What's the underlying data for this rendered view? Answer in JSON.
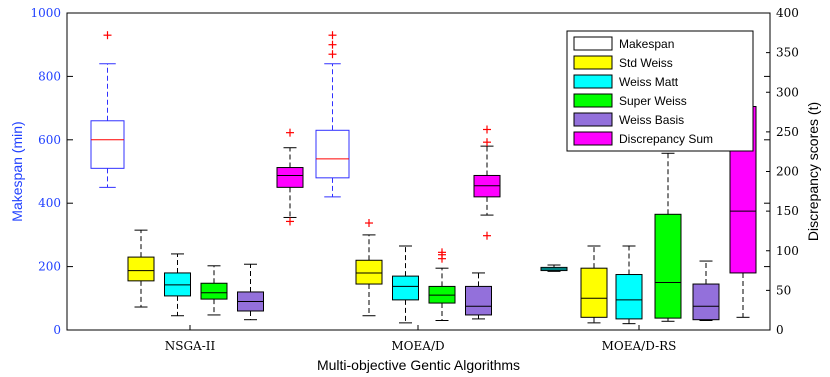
{
  "chart_data": {
    "type": "box",
    "xlabel": "Multi-objective Gentic Algorithms",
    "ylabel_left": "Makespan (min)",
    "ylabel_right": "Discrepancy scores (t)",
    "ylim_left": [
      0,
      1000
    ],
    "ylim_right": [
      0,
      400
    ],
    "yticks_left": [
      "0",
      "200",
      "400",
      "600",
      "800",
      "1000"
    ],
    "yticks_right": [
      "0",
      "50",
      "100",
      "150",
      "200",
      "250",
      "300",
      "350",
      "400"
    ],
    "categories": [
      "NSGA-II",
      "MOEA/D",
      "MOEA/D-RS"
    ],
    "legend_position": "top-right",
    "colors": {
      "left_axis": "#1f3fff",
      "outlier": "#ff0000",
      "median_makespan": "#ff0000"
    },
    "series": [
      {
        "name": "Makespan",
        "axis": "left",
        "color": "#ffffff",
        "edge": "#3030ff"
      },
      {
        "name": "Std Weiss",
        "axis": "right",
        "color": "#ffff00",
        "edge": "#000000"
      },
      {
        "name": "Weiss Matt",
        "axis": "right",
        "color": "#00ffff",
        "edge": "#000000"
      },
      {
        "name": "Super Weiss",
        "axis": "right",
        "color": "#00ff00",
        "edge": "#000000"
      },
      {
        "name": "Weiss Basis",
        "axis": "right",
        "color": "#9370db",
        "edge": "#000000"
      },
      {
        "name": "Discrepancy Sum",
        "axis": "right",
        "color": "#ff00ff",
        "edge": "#000000"
      }
    ],
    "boxes": [
      {
        "group": "NSGA-II",
        "series": "Makespan",
        "whisker_low": 450,
        "q1": 510,
        "median": 600,
        "q3": 660,
        "whisker_high": 840,
        "outliers": [
          930
        ]
      },
      {
        "group": "NSGA-II",
        "series": "Std Weiss",
        "whisker_low": 29,
        "q1": 62,
        "median": 75,
        "q3": 92,
        "whisker_high": 126,
        "outliers": []
      },
      {
        "group": "NSGA-II",
        "series": "Weiss Matt",
        "whisker_low": 18,
        "q1": 43,
        "median": 57,
        "q3": 72,
        "whisker_high": 96,
        "outliers": []
      },
      {
        "group": "NSGA-II",
        "series": "Super Weiss",
        "whisker_low": 19,
        "q1": 39,
        "median": 47,
        "q3": 59,
        "whisker_high": 81,
        "outliers": []
      },
      {
        "group": "NSGA-II",
        "series": "Weiss Basis",
        "whisker_low": 13,
        "q1": 24,
        "median": 36,
        "q3": 48,
        "whisker_high": 83,
        "outliers": []
      },
      {
        "group": "NSGA-II",
        "series": "Discrepancy Sum",
        "whisker_low": 142,
        "q1": 180,
        "median": 195,
        "q3": 205,
        "whisker_high": 230,
        "outliers": [
          249,
          137
        ]
      },
      {
        "group": "MOEA/D",
        "series": "Makespan",
        "whisker_low": 420,
        "q1": 480,
        "median": 540,
        "q3": 630,
        "whisker_high": 840,
        "outliers": [
          870,
          900,
          930
        ]
      },
      {
        "group": "MOEA/D",
        "series": "Std Weiss",
        "whisker_low": 18,
        "q1": 58,
        "median": 72,
        "q3": 88,
        "whisker_high": 120,
        "outliers": [
          135
        ]
      },
      {
        "group": "MOEA/D",
        "series": "Weiss Matt",
        "whisker_low": 9,
        "q1": 38,
        "median": 55,
        "q3": 68,
        "whisker_high": 106,
        "outliers": []
      },
      {
        "group": "MOEA/D",
        "series": "Super Weiss",
        "whisker_low": 12,
        "q1": 34,
        "median": 44,
        "q3": 55,
        "whisker_high": 78,
        "outliers": [
          90,
          95,
          98
        ]
      },
      {
        "group": "MOEA/D",
        "series": "Weiss Basis",
        "whisker_low": 14,
        "q1": 19,
        "median": 30,
        "q3": 55,
        "whisker_high": 72,
        "outliers": []
      },
      {
        "group": "MOEA/D",
        "series": "Discrepancy Sum",
        "whisker_low": 145,
        "q1": 168,
        "median": 182,
        "q3": 195,
        "whisker_high": 232,
        "outliers": [
          253,
          237,
          119
        ]
      },
      {
        "group": "MOEA/D-RS",
        "series": "Weiss Matt",
        "whisker_low": 74,
        "q1": 75,
        "median": 77,
        "q3": 79,
        "whisker_high": 82,
        "outliers": []
      },
      {
        "group": "MOEA/D-RS",
        "series": "Std Weiss",
        "whisker_low": 9,
        "q1": 16,
        "median": 40,
        "q3": 78,
        "whisker_high": 106,
        "outliers": []
      },
      {
        "group": "MOEA/D-RS",
        "series": "Weiss Matt",
        "whisker_low": 8,
        "q1": 14,
        "median": 38,
        "q3": 70,
        "whisker_high": 106,
        "outliers": []
      },
      {
        "group": "MOEA/D-RS",
        "series": "Super Weiss",
        "whisker_low": 11,
        "q1": 15,
        "median": 60,
        "q3": 146,
        "whisker_high": 223,
        "outliers": []
      },
      {
        "group": "MOEA/D-RS",
        "series": "Weiss Basis",
        "whisker_low": 12,
        "q1": 13,
        "median": 30,
        "q3": 58,
        "whisker_high": 87,
        "outliers": []
      },
      {
        "group": "MOEA/D-RS",
        "series": "Discrepancy Sum",
        "whisker_low": 16,
        "q1": 72,
        "median": 150,
        "q3": 282,
        "whisker_high": 282,
        "outliers": []
      }
    ]
  }
}
